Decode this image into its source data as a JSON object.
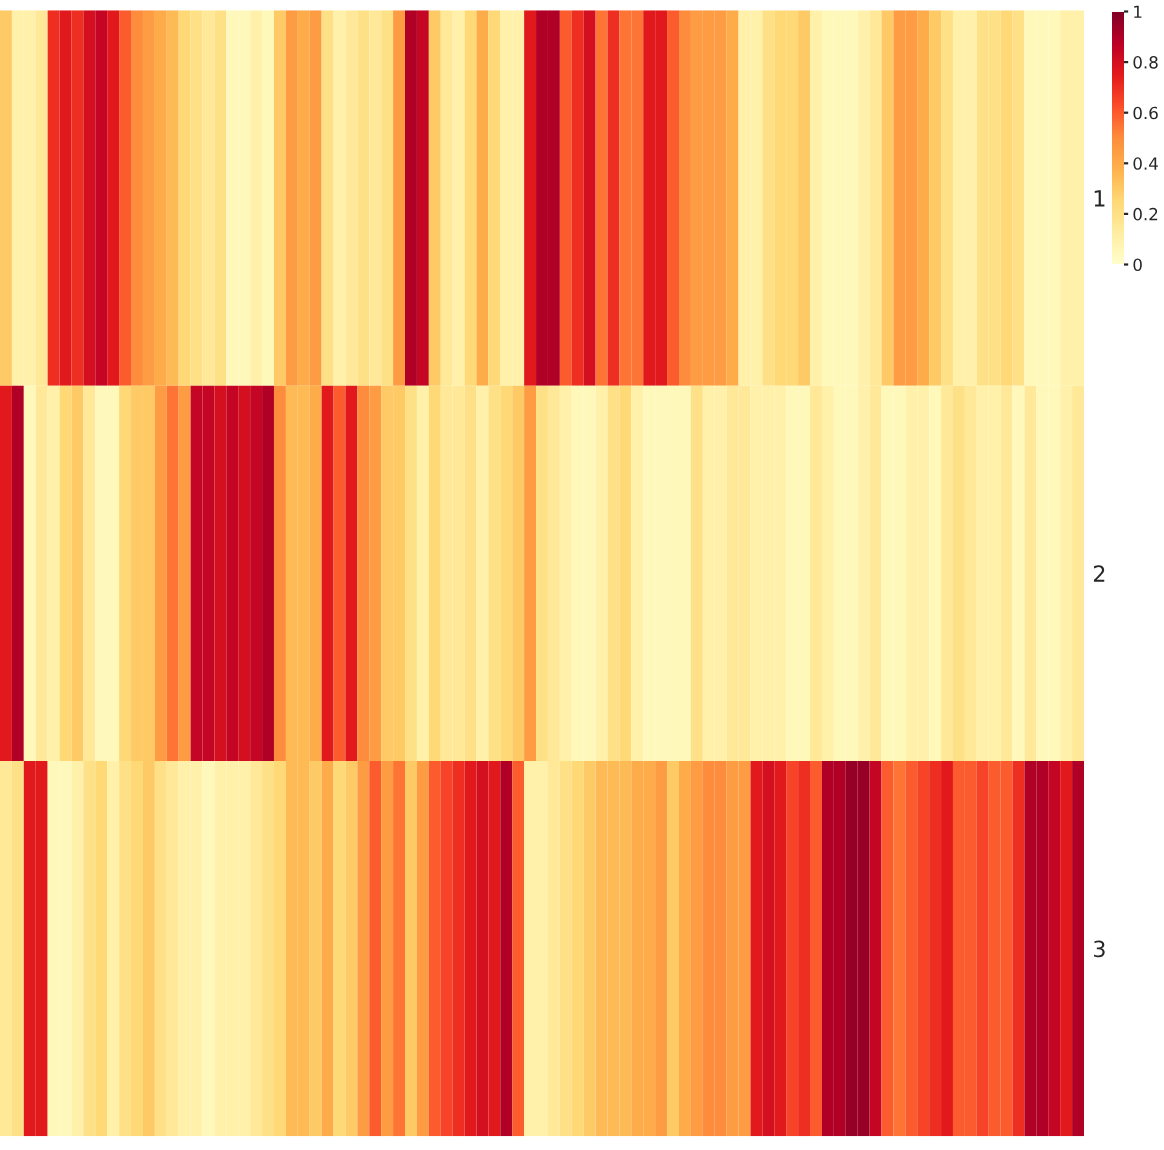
{
  "chart_data": {
    "type": "heatmap",
    "categories": [
      null,
      null,
      null,
      null,
      null,
      null,
      null,
      null,
      null,
      null,
      null,
      null,
      null,
      null,
      null,
      null,
      null,
      null,
      null,
      null,
      null,
      null,
      null,
      null,
      null,
      null,
      null,
      null,
      null,
      null,
      null,
      null,
      null,
      null,
      null,
      null,
      null,
      null,
      null,
      null,
      null,
      null,
      null,
      null,
      null,
      null,
      null,
      null,
      null,
      null,
      null,
      null,
      null,
      null,
      null,
      null,
      null,
      null,
      null,
      null,
      null,
      null,
      null,
      null,
      null,
      null,
      null,
      null,
      null,
      null,
      null,
      null,
      null,
      null,
      null,
      null,
      null,
      null,
      null,
      null,
      null,
      null,
      null,
      null,
      null,
      null,
      null,
      null,
      null,
      null,
      null
    ],
    "y_categories": [
      "1",
      "2",
      "3"
    ],
    "cells": [
      [
        0.3,
        0.1,
        0.1,
        0.15,
        0.7,
        0.75,
        0.7,
        0.8,
        0.85,
        0.75,
        0.6,
        0.5,
        0.45,
        0.4,
        0.35,
        0.25,
        0.2,
        0.15,
        0.2,
        0.05,
        0.05,
        0.1,
        0.05,
        0.3,
        0.45,
        0.4,
        0.45,
        0.2,
        0.1,
        0.15,
        0.2,
        0.15,
        0.2,
        0.45,
        0.9,
        0.85,
        0.3,
        0.15,
        0.1,
        0.25,
        0.4,
        0.25,
        0.1,
        0.1,
        0.75,
        0.9,
        0.9,
        0.6,
        0.7,
        0.8,
        0.55,
        0.7,
        0.55,
        0.55,
        0.75,
        0.75,
        0.6,
        0.5,
        0.45,
        0.45,
        0.45,
        0.4,
        0.1,
        0.1,
        0.2,
        0.25,
        0.25,
        0.3,
        0.1,
        0.05,
        0.05,
        0.05,
        0.1,
        0.15,
        0.3,
        0.45,
        0.45,
        0.4,
        0.3,
        0.2,
        0.1,
        0.1,
        0.2,
        0.2,
        0.25,
        0.2,
        0.05,
        0.05,
        0.05,
        0.1,
        0.1
      ],
      [
        0.75,
        0.9,
        0.05,
        0.15,
        0.1,
        0.25,
        0.3,
        0.15,
        0.05,
        0.05,
        0.25,
        0.3,
        0.3,
        0.45,
        0.55,
        0.45,
        0.85,
        0.85,
        0.8,
        0.85,
        0.8,
        0.85,
        0.9,
        0.5,
        0.35,
        0.35,
        0.4,
        0.75,
        0.6,
        0.75,
        0.5,
        0.45,
        0.3,
        0.3,
        0.2,
        0.1,
        0.25,
        0.15,
        0.15,
        0.2,
        0.1,
        0.2,
        0.25,
        0.3,
        0.45,
        0.2,
        0.15,
        0.1,
        0.05,
        0.05,
        0.1,
        0.2,
        0.25,
        0.1,
        0.05,
        0.05,
        0.05,
        0.05,
        0.2,
        0.1,
        0.1,
        0.15,
        0.15,
        0.1,
        0.1,
        0.1,
        0.05,
        0.05,
        0.15,
        0.1,
        0.05,
        0.05,
        0.1,
        0.15,
        0.05,
        0.05,
        0.1,
        0.1,
        0.05,
        0.15,
        0.2,
        0.15,
        0.1,
        0.1,
        0.15,
        0.05,
        0.15,
        0.05,
        0.05,
        0.1,
        0.15
      ],
      [
        0.15,
        0.2,
        0.75,
        0.75,
        0.05,
        0.05,
        0.1,
        0.2,
        0.25,
        0.1,
        0.2,
        0.25,
        0.3,
        0.2,
        0.15,
        0.1,
        0.1,
        0.05,
        0.1,
        0.1,
        0.1,
        0.15,
        0.2,
        0.25,
        0.35,
        0.35,
        0.3,
        0.4,
        0.25,
        0.3,
        0.45,
        0.6,
        0.45,
        0.55,
        0.3,
        0.45,
        0.6,
        0.65,
        0.7,
        0.75,
        0.8,
        0.75,
        0.9,
        0.6,
        0.1,
        0.1,
        0.15,
        0.2,
        0.25,
        0.3,
        0.35,
        0.35,
        0.35,
        0.4,
        0.4,
        0.45,
        0.3,
        0.4,
        0.45,
        0.5,
        0.5,
        0.45,
        0.45,
        0.75,
        0.8,
        0.75,
        0.65,
        0.7,
        0.6,
        0.9,
        0.9,
        0.95,
        0.95,
        0.85,
        0.6,
        0.55,
        0.6,
        0.65,
        0.7,
        0.75,
        0.6,
        0.6,
        0.65,
        0.6,
        0.6,
        0.7,
        0.9,
        0.9,
        0.85,
        0.75,
        0.9
      ]
    ],
    "clim": [
      0,
      1
    ],
    "cticks": [
      0,
      0.2,
      0.4,
      0.6,
      0.8,
      1
    ]
  }
}
